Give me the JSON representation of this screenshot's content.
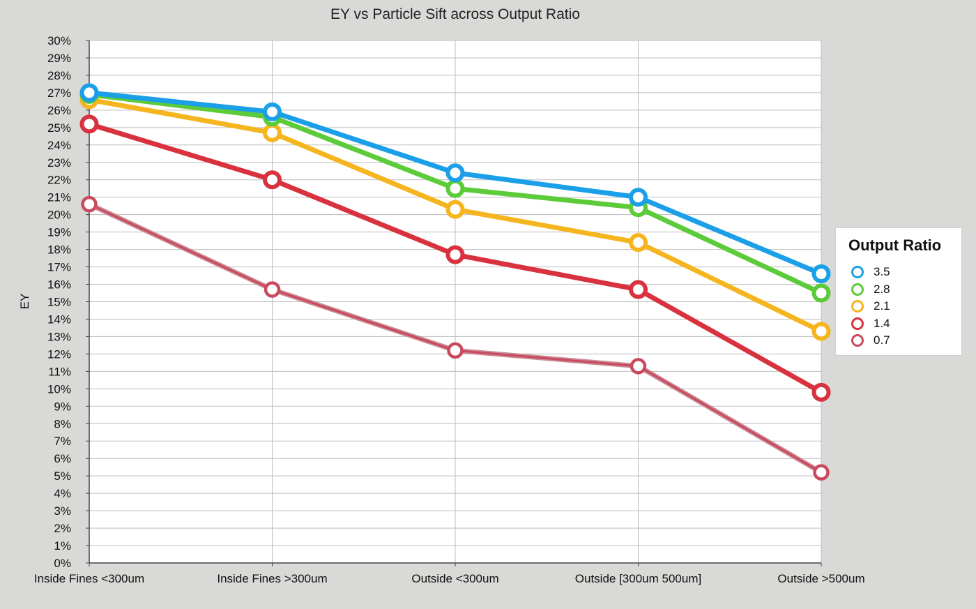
{
  "chart_data": {
    "type": "line",
    "title": "EY vs Particle Sift across Output Ratio",
    "xlabel": "",
    "ylabel": "EY",
    "ylim": [
      0,
      30
    ],
    "y_tick_labels": [
      "0%",
      "1%",
      "2%",
      "3%",
      "4%",
      "5%",
      "6%",
      "7%",
      "8%",
      "9%",
      "10%",
      "11%",
      "12%",
      "13%",
      "14%",
      "15%",
      "16%",
      "17%",
      "18%",
      "19%",
      "20%",
      "21%",
      "22%",
      "23%",
      "24%",
      "25%",
      "26%",
      "27%",
      "28%",
      "29%",
      "30%"
    ],
    "categories": [
      "Inside Fines <300um",
      "Inside Fines >300um",
      "Outside <300um",
      "Outside [300um 500um]",
      "Outside >500um"
    ],
    "grid": true,
    "legend_position": "right",
    "legend_title": "Output Ratio",
    "series": [
      {
        "name": "3.5",
        "color": "#1a9fe8",
        "values": [
          27.0,
          25.9,
          22.4,
          21.0,
          16.6
        ]
      },
      {
        "name": "2.8",
        "color": "#5ccb3a",
        "values": [
          26.9,
          25.6,
          21.5,
          20.4,
          15.5
        ]
      },
      {
        "name": "2.1",
        "color": "#f5b51e",
        "values": [
          26.6,
          24.7,
          20.3,
          18.4,
          13.3
        ]
      },
      {
        "name": "1.4",
        "color": "#d9323f",
        "values": [
          25.2,
          22.0,
          17.7,
          15.7,
          9.8
        ]
      },
      {
        "name": "0.7",
        "color": "#c94a5e",
        "values": [
          20.6,
          15.7,
          12.2,
          11.3,
          5.2
        ]
      }
    ]
  }
}
